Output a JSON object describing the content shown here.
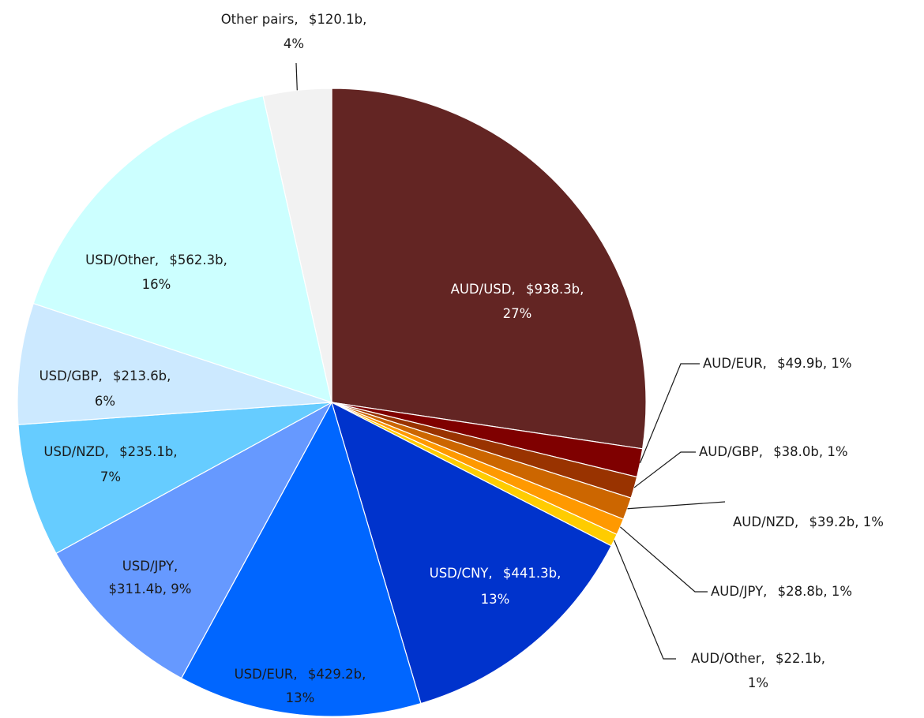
{
  "chart_data": {
    "type": "pie",
    "categories": [
      "AUD/USD",
      "AUD/EUR",
      "AUD/GBP",
      "AUD/NZD",
      "AUD/JPY",
      "AUD/Other",
      "USD/CNY",
      "USD/EUR",
      "USD/JPY",
      "USD/NZD",
      "USD/GBP",
      "USD/Other",
      "Other pairs"
    ],
    "values": [
      938.3,
      49.9,
      38.0,
      39.2,
      28.8,
      22.1,
      441.3,
      429.2,
      311.4,
      235.1,
      213.6,
      562.3,
      120.1
    ],
    "value_labels": [
      "$938.3b",
      "$49.9b",
      "$38.0b",
      "$39.2b",
      "$28.8b",
      "$22.1b",
      "$441.3b",
      "$429.2b",
      "$311.4b",
      "$235.1b",
      "$213.6b",
      "$562.3b",
      "$120.1b"
    ],
    "percents": [
      27,
      1,
      1,
      1,
      1,
      1,
      13,
      13,
      9,
      7,
      6,
      16,
      4
    ],
    "percent_labels": [
      "27%",
      "1%",
      "1%",
      "1%",
      "1%",
      "1%",
      "13%",
      "13%",
      "9%",
      "7%",
      "6%",
      "16%",
      "4%"
    ],
    "colors": [
      "#632523",
      "#7f0000",
      "#993300",
      "#cc6600",
      "#ff9900",
      "#ffcc00",
      "#0033cc",
      "#0066ff",
      "#6699ff",
      "#66ccff",
      "#cce9ff",
      "#ccffff",
      "#f2f2f2"
    ]
  }
}
